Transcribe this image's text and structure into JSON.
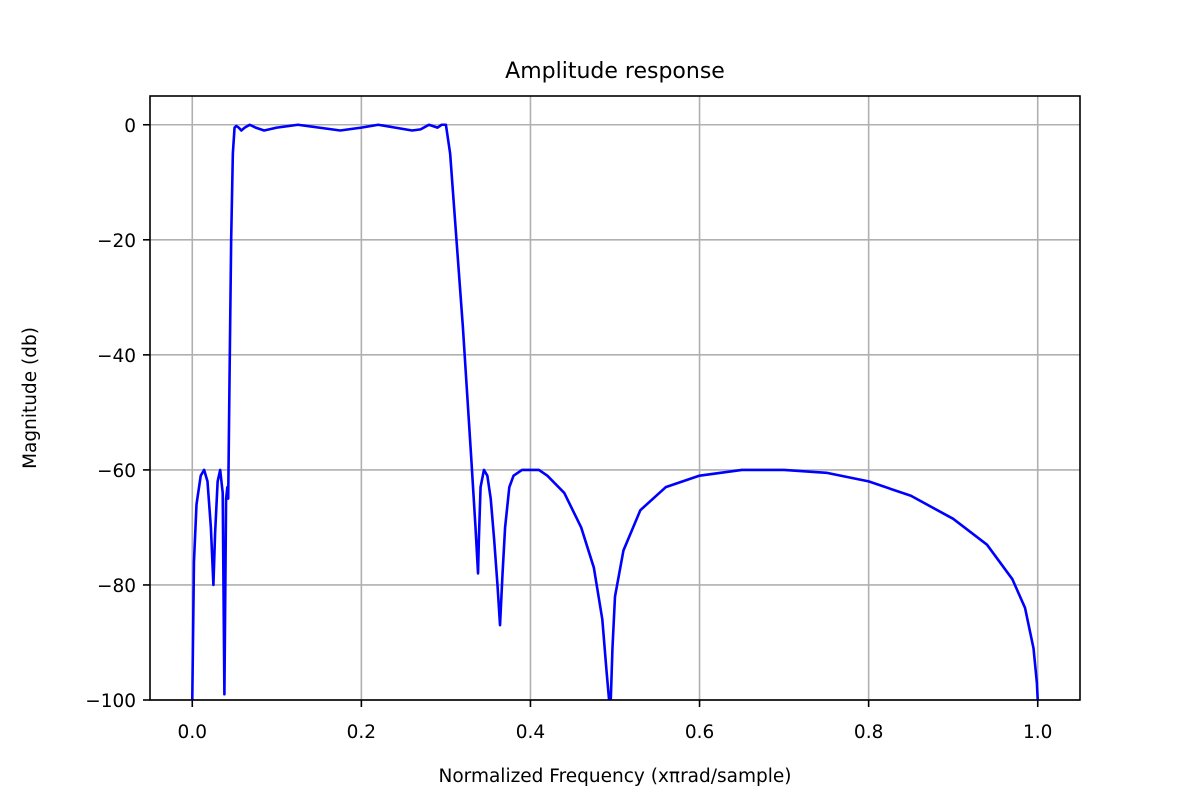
{
  "chart_data": {
    "type": "line",
    "title": "Amplitude response",
    "xlabel": "Normalized Frequency (xπrad/sample)",
    "ylabel": "Magnitude (db)",
    "xlim": [
      -0.05,
      1.05
    ],
    "ylim": [
      -100,
      5
    ],
    "xticks": [
      0.0,
      0.2,
      0.4,
      0.6,
      0.8,
      1.0
    ],
    "xtick_labels": [
      "0.0",
      "0.2",
      "0.4",
      "0.6",
      "0.8",
      "1.0"
    ],
    "yticks": [
      0,
      -20,
      -40,
      -60,
      -80,
      -100
    ],
    "ytick_labels": [
      "0",
      "−20",
      "−40",
      "−60",
      "−80",
      "−100"
    ],
    "grid": true,
    "series": [
      {
        "color": "#0000ff",
        "x": [
          0.0,
          0.002,
          0.005,
          0.01,
          0.014,
          0.018,
          0.022,
          0.025,
          0.027,
          0.03,
          0.033,
          0.036,
          0.038,
          0.04,
          0.0415,
          0.0425,
          0.044,
          0.046,
          0.048,
          0.05,
          0.052,
          0.055,
          0.058,
          0.062,
          0.068,
          0.075,
          0.085,
          0.1,
          0.125,
          0.15,
          0.175,
          0.2,
          0.22,
          0.24,
          0.26,
          0.27,
          0.28,
          0.29,
          0.295,
          0.3,
          0.305,
          0.31,
          0.32,
          0.33,
          0.335,
          0.338,
          0.339,
          0.341,
          0.345,
          0.349,
          0.353,
          0.357,
          0.361,
          0.364,
          0.367,
          0.37,
          0.375,
          0.38,
          0.39,
          0.4,
          0.41,
          0.42,
          0.44,
          0.46,
          0.475,
          0.485,
          0.49,
          0.493,
          0.495,
          0.497,
          0.5,
          0.51,
          0.53,
          0.56,
          0.6,
          0.65,
          0.7,
          0.75,
          0.8,
          0.85,
          0.9,
          0.94,
          0.97,
          0.985,
          0.995,
          0.999,
          1.0
        ],
        "y": [
          -100,
          -76,
          -66,
          -61,
          -60,
          -62,
          -70,
          -80,
          -71,
          -62,
          -60,
          -64,
          -99,
          -65,
          -63,
          -65,
          -45,
          -20,
          -5,
          -0.5,
          -0.2,
          -0.5,
          -1,
          -0.5,
          0,
          -0.5,
          -1,
          -0.5,
          0,
          -0.5,
          -1,
          -0.5,
          0,
          -0.5,
          -1,
          -0.8,
          0,
          -0.5,
          0,
          0,
          -5,
          -15,
          -35,
          -58,
          -70,
          -78,
          -72,
          -63,
          -60,
          -61,
          -65,
          -72,
          -80,
          -87,
          -78,
          -70,
          -63,
          -61,
          -60,
          -60,
          -60,
          -61,
          -64,
          -70,
          -77,
          -86,
          -95,
          -100,
          -100,
          -91,
          -82,
          -74,
          -67,
          -63,
          -61,
          -60,
          -60,
          -60.5,
          -62,
          -64.5,
          -68.5,
          -73,
          -79,
          -84,
          -91,
          -97,
          -100
        ]
      }
    ]
  }
}
